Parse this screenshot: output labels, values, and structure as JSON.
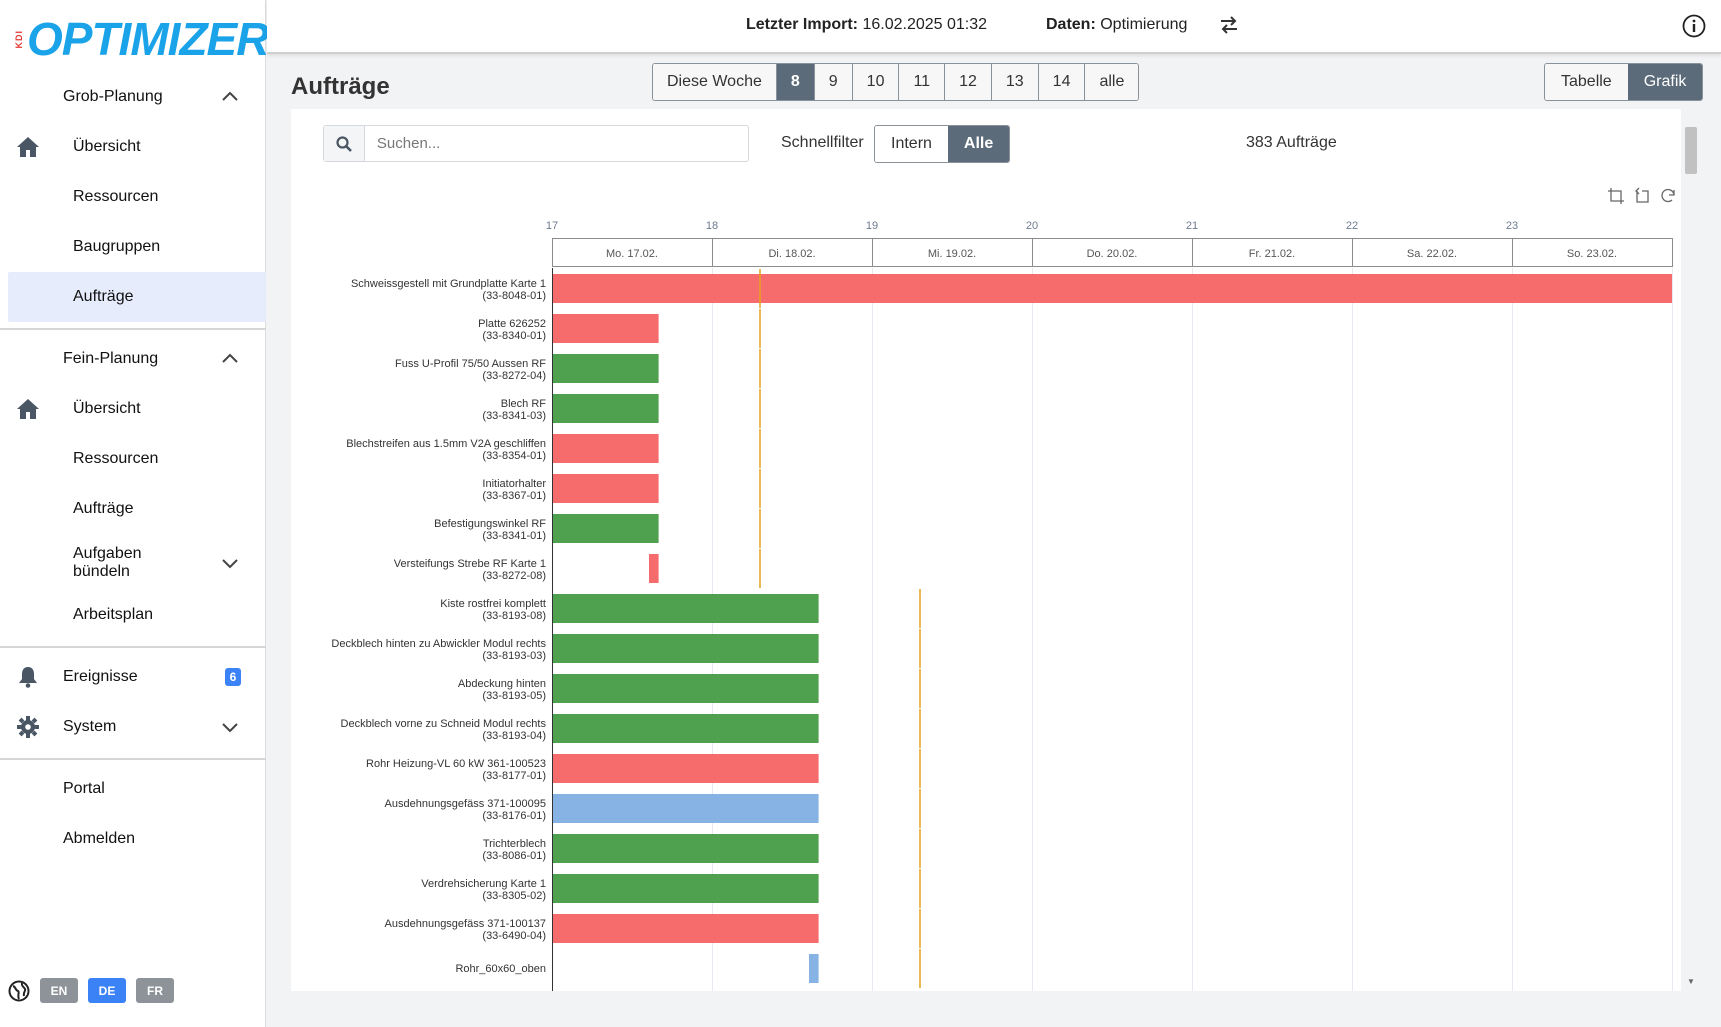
{
  "sidebar": {
    "brand_prefix": "KDI",
    "brand": "OPTIMIZER",
    "grob": {
      "label": "Grob-Planung",
      "items": [
        "Übersicht",
        "Ressourcen",
        "Baugruppen",
        "Aufträge"
      ]
    },
    "fein": {
      "label": "Fein-Planung",
      "items": [
        "Übersicht",
        "Ressourcen",
        "Aufträge",
        "Aufgaben bündeln",
        "Arbeitsplan"
      ]
    },
    "ereignisse": {
      "label": "Ereignisse",
      "badge": "6"
    },
    "system": {
      "label": "System"
    },
    "portal": "Portal",
    "abmelden": "Abmelden",
    "languages": [
      "EN",
      "DE",
      "FR"
    ],
    "active_language": "DE"
  },
  "topbar": {
    "import_label": "Letzter Import:",
    "import_value": "16.02.2025 01:32",
    "data_label": "Daten:",
    "data_value": "Optimierung"
  },
  "page": {
    "title": "Aufträge",
    "weeks": [
      "Diese Woche",
      "8",
      "9",
      "10",
      "11",
      "12",
      "13",
      "14",
      "alle"
    ],
    "active_week": "8",
    "views": [
      "Tabelle",
      "Grafik"
    ],
    "active_view": "Grafik",
    "search_placeholder": "Suchen...",
    "schnellfilter_label": "Schnellfilter",
    "schnellfilter_options": [
      "Intern",
      "Alle"
    ],
    "active_schnellfilter": "Alle",
    "count_text": "383 Aufträge"
  },
  "colors": {
    "accent": "#5c6b79",
    "red": "#f66b6b",
    "green": "#4fa14f",
    "blue": "#86b3e3",
    "today_line": "#e5a21a",
    "brand": "#1aa3e8"
  },
  "chart_data": {
    "type": "gantt",
    "week_numbers": [
      "17",
      "18",
      "19",
      "20",
      "21",
      "22",
      "23"
    ],
    "days": [
      "Mo. 17.02.",
      "Di. 18.02.",
      "Mi. 19.02.",
      "Do. 20.02.",
      "Fr. 21.02.",
      "Sa. 22.02.",
      "So. 23.02."
    ],
    "rows": [
      {
        "name": "Schweissgestell mit Grundplatte Karte 1",
        "id": "(33-8048-01)",
        "start": 0,
        "end": 7,
        "status": "red",
        "marker": 1.3
      },
      {
        "name": "Platte 626252",
        "id": "(33-8340-01)",
        "start": 0,
        "end": 0.66,
        "status": "red",
        "marker": 1.3
      },
      {
        "name": "Fuss U-Profil 75/50 Aussen RF",
        "id": "(33-8272-04)",
        "start": 0,
        "end": 0.66,
        "status": "green",
        "marker": 1.3
      },
      {
        "name": "Blech RF",
        "id": "(33-8341-03)",
        "start": 0,
        "end": 0.66,
        "status": "green",
        "marker": 1.3
      },
      {
        "name": "Blechstreifen aus 1.5mm V2A geschliffen",
        "id": "(33-8354-01)",
        "start": 0,
        "end": 0.66,
        "status": "red",
        "marker": 1.3
      },
      {
        "name": "Initiatorhalter",
        "id": "(33-8367-01)",
        "start": 0,
        "end": 0.66,
        "status": "red",
        "marker": 1.3
      },
      {
        "name": "Befestigungswinkel RF",
        "id": "(33-8341-01)",
        "start": 0,
        "end": 0.66,
        "status": "green",
        "marker": 1.3
      },
      {
        "name": "Versteifungs Strebe RF Karte 1",
        "id": "(33-8272-08)",
        "start": 0.6,
        "end": 0.66,
        "status": "red",
        "marker": 1.3
      },
      {
        "name": "Kiste rostfrei komplett",
        "id": "(33-8193-08)",
        "start": 0,
        "end": 1.66,
        "status": "green",
        "marker": 2.3
      },
      {
        "name": "Deckblech hinten zu Abwickler Modul rechts",
        "id": "(33-8193-03)",
        "start": 0,
        "end": 1.66,
        "status": "green",
        "marker": 2.3
      },
      {
        "name": "Abdeckung hinten",
        "id": "(33-8193-05)",
        "start": 0,
        "end": 1.66,
        "status": "green",
        "marker": 2.3
      },
      {
        "name": "Deckblech vorne zu Schneid Modul rechts",
        "id": "(33-8193-04)",
        "start": 0,
        "end": 1.66,
        "status": "green",
        "marker": 2.3
      },
      {
        "name": "Rohr Heizung-VL 60 kW 361-100523",
        "id": "(33-8177-01)",
        "start": 0,
        "end": 1.66,
        "status": "red",
        "marker": 2.3
      },
      {
        "name": "Ausdehnungsgefäss 371-100095",
        "id": "(33-8176-01)",
        "start": 0,
        "end": 1.66,
        "status": "blue",
        "marker": 2.3
      },
      {
        "name": "Trichterblech",
        "id": "(33-8086-01)",
        "start": 0,
        "end": 1.66,
        "status": "green",
        "marker": 2.3
      },
      {
        "name": "Verdrehsicherung Karte 1",
        "id": "(33-8305-02)",
        "start": 0,
        "end": 1.66,
        "status": "green",
        "marker": 2.3
      },
      {
        "name": "Ausdehnungsgefäss 371-100137",
        "id": "(33-6490-04)",
        "start": 0,
        "end": 1.66,
        "status": "red",
        "marker": 2.3
      },
      {
        "name": "Rohr_60x60_oben",
        "id": "",
        "start": 1.6,
        "end": 1.66,
        "status": "blue",
        "marker": 2.3
      }
    ]
  }
}
